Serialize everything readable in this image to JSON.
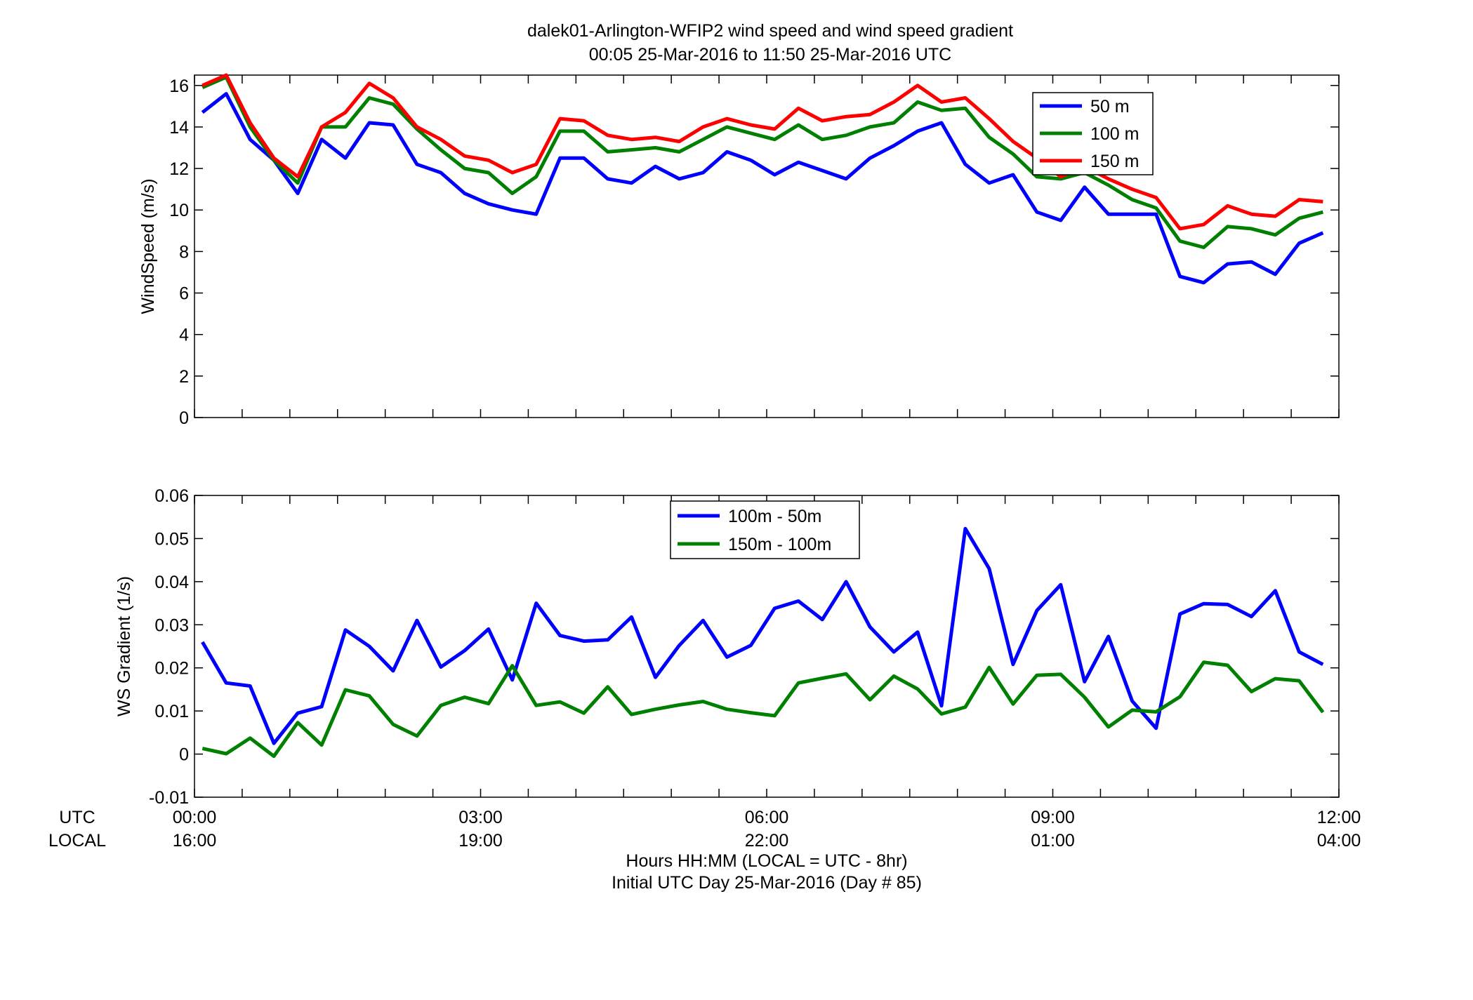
{
  "figure": {
    "title_line1": "dalek01-Arlington-WFIP2  wind speed and wind speed gradient",
    "title_line2": "00:05 25-Mar-2016 to 11:50 25-Mar-2016  UTC",
    "xlabel_line1": "Hours HH:MM  (LOCAL = UTC - 8hr)",
    "xlabel_line2": "Initial UTC Day 25-Mar-2016 (Day # 85)",
    "row_label_utc": "UTC",
    "row_label_local": "LOCAL",
    "xticks_utc": [
      "00:00",
      "03:00",
      "06:00",
      "09:00",
      "12:00"
    ],
    "xticks_local": [
      "16:00",
      "19:00",
      "22:00",
      "01:00",
      "04:00"
    ]
  },
  "chart_data": [
    {
      "type": "line",
      "ylabel": "WindSpeed (m/s)",
      "ylim": [
        0,
        16.5
      ],
      "yticks": [
        0,
        2,
        4,
        6,
        8,
        10,
        12,
        14,
        16
      ],
      "xlim": [
        0,
        12
      ],
      "legend_position": "top-right",
      "x_hours": [
        0.083,
        0.333,
        0.583,
        0.833,
        1.083,
        1.333,
        1.583,
        1.833,
        2.083,
        2.333,
        2.583,
        2.833,
        3.083,
        3.333,
        3.583,
        3.833,
        4.083,
        4.333,
        4.583,
        4.833,
        5.083,
        5.333,
        5.583,
        5.833,
        6.083,
        6.333,
        6.583,
        6.833,
        7.083,
        7.333,
        7.583,
        7.833,
        8.083,
        8.333,
        8.583,
        8.833,
        9.083,
        9.333,
        9.583,
        9.833,
        10.083,
        10.333,
        10.583,
        10.833,
        11.083,
        11.333,
        11.583,
        11.833
      ],
      "series": [
        {
          "name": "50 m",
          "color": "#0000ff",
          "values": [
            14.7,
            15.6,
            13.4,
            12.4,
            10.8,
            13.4,
            12.5,
            14.2,
            14.1,
            12.2,
            11.8,
            10.8,
            10.3,
            10.0,
            9.8,
            12.5,
            12.5,
            11.5,
            11.3,
            12.1,
            11.5,
            11.8,
            12.8,
            12.4,
            11.7,
            12.3,
            11.9,
            11.5,
            12.5,
            13.1,
            13.8,
            14.2,
            12.2,
            11.3,
            11.7,
            9.9,
            9.5,
            11.1,
            9.8,
            9.8,
            9.8,
            6.8,
            6.5,
            7.4,
            7.5,
            6.9,
            8.4,
            8.9
          ]
        },
        {
          "name": "100 m",
          "color": "#008000",
          "values": [
            15.9,
            16.4,
            14.0,
            12.4,
            11.3,
            14.0,
            14.0,
            15.4,
            15.1,
            13.9,
            12.9,
            12.0,
            11.8,
            10.8,
            11.6,
            13.8,
            13.8,
            12.8,
            12.9,
            13.0,
            12.8,
            13.4,
            14.0,
            13.7,
            13.4,
            14.1,
            13.4,
            13.6,
            14.0,
            14.2,
            15.2,
            14.8,
            14.9,
            13.5,
            12.7,
            11.6,
            11.5,
            11.8,
            11.2,
            10.5,
            10.1,
            8.5,
            8.2,
            9.2,
            9.1,
            8.8,
            9.6,
            9.9
          ]
        },
        {
          "name": "150 m",
          "color": "#ff0000",
          "values": [
            16.0,
            16.5,
            14.2,
            12.5,
            11.6,
            14.0,
            14.7,
            16.1,
            15.4,
            14.0,
            13.4,
            12.6,
            12.4,
            11.8,
            12.2,
            14.4,
            14.3,
            13.6,
            13.4,
            13.5,
            13.3,
            14.0,
            14.4,
            14.1,
            13.9,
            14.9,
            14.3,
            14.5,
            14.6,
            15.2,
            16.0,
            15.2,
            15.4,
            14.4,
            13.3,
            12.5,
            11.6,
            12.1,
            11.5,
            11.0,
            10.6,
            9.1,
            9.3,
            10.2,
            9.8,
            9.7,
            10.5,
            10.4
          ]
        }
      ]
    },
    {
      "type": "line",
      "ylabel": "WS Gradient (1/s)",
      "ylim": [
        -0.01,
        0.06
      ],
      "yticks": [
        -0.01,
        0,
        0.01,
        0.02,
        0.03,
        0.04,
        0.05,
        0.06
      ],
      "ytick_labels": [
        "-0.01",
        "0",
        "0.01",
        "0.02",
        "0.03",
        "0.04",
        "0.05",
        "0.06"
      ],
      "xlim": [
        0,
        12
      ],
      "legend_position": "top-center",
      "x_hours": [
        0.083,
        0.333,
        0.583,
        0.833,
        1.083,
        1.333,
        1.583,
        1.833,
        2.083,
        2.333,
        2.583,
        2.833,
        3.083,
        3.333,
        3.583,
        3.833,
        4.083,
        4.333,
        4.583,
        4.833,
        5.083,
        5.333,
        5.583,
        5.833,
        6.083,
        6.333,
        6.583,
        6.833,
        7.083,
        7.333,
        7.583,
        7.833,
        8.083,
        8.333,
        8.583,
        8.833,
        9.083,
        9.333,
        9.583,
        9.833,
        10.083,
        10.333,
        10.583,
        10.833,
        11.083,
        11.333,
        11.583,
        11.833
      ],
      "series": [
        {
          "name": "100m - 50m",
          "color": "#0000ff",
          "values": [
            0.026,
            0.0165,
            0.0158,
            0.0025,
            0.0095,
            0.011,
            0.0288,
            0.025,
            0.0193,
            0.031,
            0.0202,
            0.024,
            0.029,
            0.0172,
            0.035,
            0.0275,
            0.0262,
            0.0265,
            0.0318,
            0.0178,
            0.0252,
            0.031,
            0.0225,
            0.0252,
            0.0338,
            0.0355,
            0.0312,
            0.04,
            0.0295,
            0.0237,
            0.0283,
            0.0112,
            0.0523,
            0.043,
            0.0208,
            0.0333,
            0.0393,
            0.0168,
            0.0273,
            0.0123,
            0.006,
            0.0325,
            0.0349,
            0.0347,
            0.0319,
            0.0379,
            0.0237,
            0.0208
          ]
        },
        {
          "name": "150m - 100m",
          "color": "#008000",
          "values": [
            0.0013,
            0.0001,
            0.0037,
            -0.0005,
            0.0073,
            0.0021,
            0.0149,
            0.0135,
            0.0069,
            0.0042,
            0.0113,
            0.0132,
            0.0117,
            0.0205,
            0.0113,
            0.0121,
            0.0095,
            0.0156,
            0.0092,
            0.0104,
            0.0114,
            0.0122,
            0.0104,
            0.0096,
            0.0089,
            0.0165,
            0.0176,
            0.0186,
            0.0126,
            0.0181,
            0.0151,
            0.0093,
            0.0109,
            0.0201,
            0.0116,
            0.0183,
            0.0185,
            0.0132,
            0.0063,
            0.0102,
            0.0098,
            0.0133,
            0.0213,
            0.0206,
            0.0145,
            0.0175,
            0.017,
            0.0097
          ]
        }
      ]
    }
  ]
}
